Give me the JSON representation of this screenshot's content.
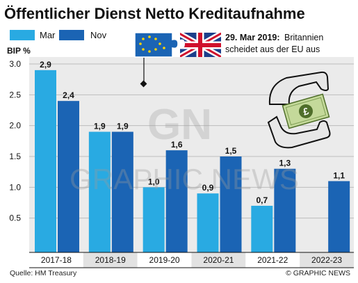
{
  "chart_data": {
    "type": "bar",
    "title": "Öffentlicher Dienst Netto Kreditaufnahme",
    "ylabel": "BIP %",
    "ylim": [
      0,
      3.0
    ],
    "yticks": [
      "3.0",
      "2.5",
      "2.0",
      "1.5",
      "1.0",
      "0.5"
    ],
    "categories": [
      "2017-18",
      "2018-19",
      "2019-20",
      "2020-21",
      "2021-22",
      "2022-23"
    ],
    "series": [
      {
        "name": "Mar",
        "color": "#29aae2",
        "values": [
          2.9,
          1.9,
          1.0,
          0.9,
          0.7,
          null
        ],
        "labels": [
          "2,9",
          "1,9",
          "1,0",
          "0,9",
          "0,7",
          ""
        ]
      },
      {
        "name": "Nov",
        "color": "#1b64b4",
        "values": [
          2.4,
          1.9,
          1.6,
          1.5,
          1.3,
          1.1
        ],
        "labels": [
          "2,4",
          "1,9",
          "1,6",
          "1,5",
          "1,3",
          "1,1"
        ]
      }
    ],
    "grid": true,
    "legend": "top-left",
    "annotation": {
      "date": "29. Mar 2019:",
      "line1": "Britannien",
      "line2": "scheidet aus der EU aus"
    }
  },
  "watermark": {
    "logo": "GN",
    "text": "GRAPHIC NEWS"
  },
  "footer": {
    "source": "Quelle: HM Treasury",
    "credit": "© GRAPHIC NEWS"
  },
  "icons": [
    "eu-uk-puzzle-icon",
    "hands-money-icon"
  ]
}
